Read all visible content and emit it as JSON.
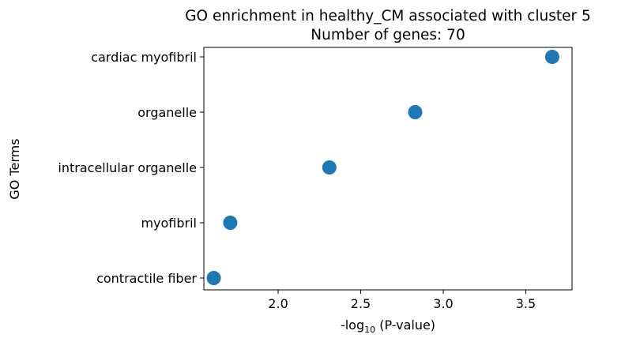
{
  "chart_data": {
    "type": "scatter",
    "title_line1": "GO enrichment in healthy_CM associated with cluster 5",
    "title_line2": "Number of genes: 70",
    "xlabel_prefix": "-log",
    "xlabel_sub": "10",
    "xlabel_suffix": " (P-value)",
    "ylabel": "GO Terms",
    "xlim": [
      1.55,
      3.78
    ],
    "xticks": [
      2.0,
      2.5,
      3.0,
      3.5
    ],
    "xtick_labels": [
      "2.0",
      "2.5",
      "3.0",
      "3.5"
    ],
    "categories": [
      "cardiac myofibril",
      "organelle",
      "intracellular organelle",
      "myofibril",
      "contractile fiber"
    ],
    "x": [
      3.66,
      2.83,
      2.31,
      1.71,
      1.61
    ],
    "marker_color": "#1f77b4",
    "grid": false
  }
}
